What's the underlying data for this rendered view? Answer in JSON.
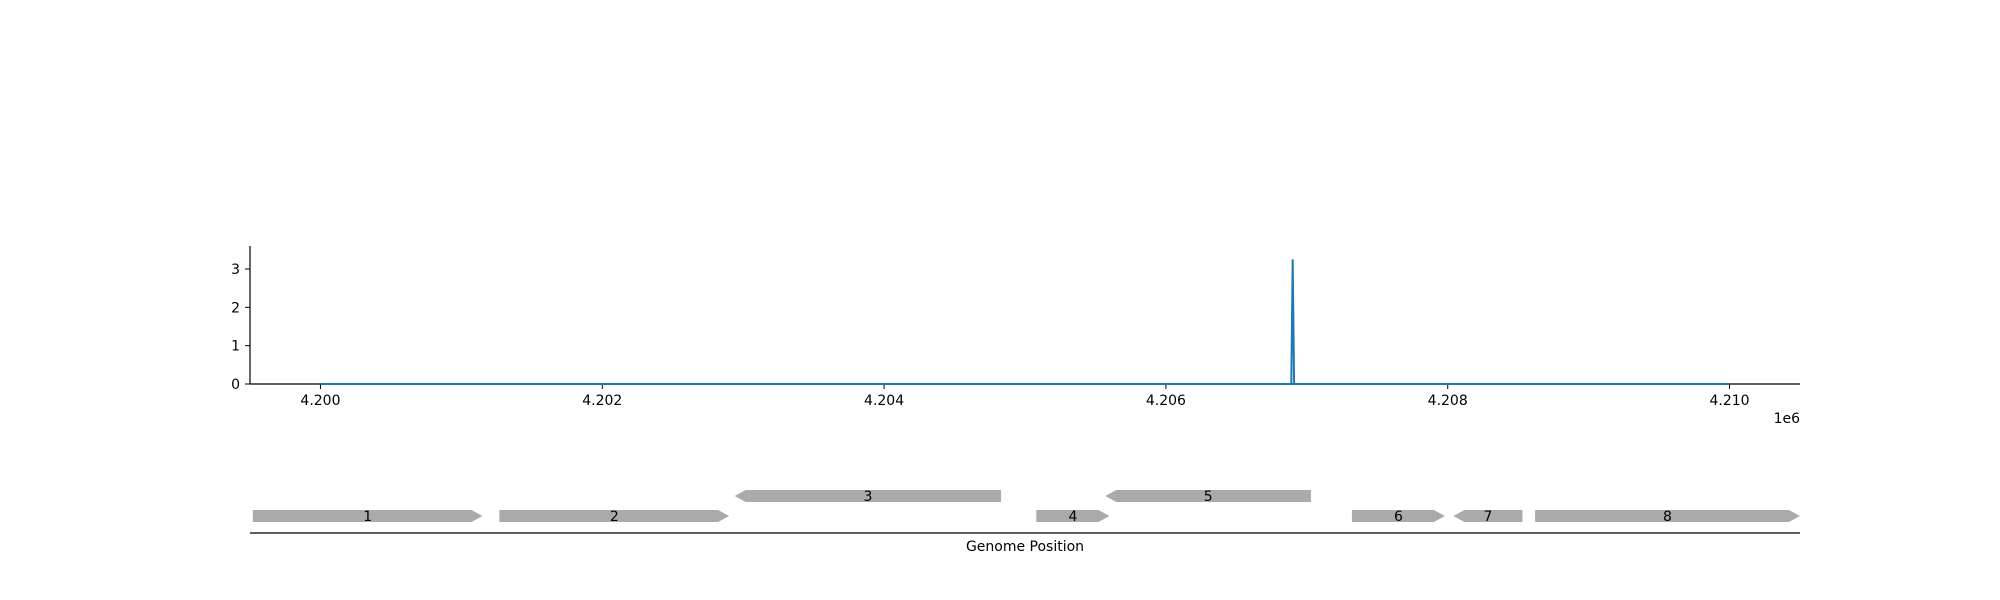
{
  "chart_data": [
    {
      "type": "line",
      "title": "",
      "xlabel": "",
      "ylabel": "",
      "x_offset_label": "1e6",
      "xlim": [
        4.1995,
        4.2105
      ],
      "ylim": [
        0,
        3.6
      ],
      "xticks": [
        4.2,
        4.202,
        4.204,
        4.206,
        4.208,
        4.21
      ],
      "xtick_labels": [
        "4.200",
        "4.202",
        "4.204",
        "4.206",
        "4.208",
        "4.210"
      ],
      "yticks": [
        0,
        1,
        2,
        3
      ],
      "ytick_labels": [
        "0",
        "1",
        "2",
        "3"
      ],
      "grid": false,
      "series": [
        {
          "color": "#1f77b4",
          "x": [
            4.2,
            4.20689,
            4.2069,
            4.20691,
            4.21
          ],
          "y": [
            0,
            0,
            3.25,
            0,
            0
          ]
        }
      ]
    },
    {
      "type": "gene_track",
      "xlabel": "Genome Position",
      "xlim": [
        4.1995,
        4.2105
      ],
      "color": "#aaaaaa",
      "genes": [
        {
          "label": "1",
          "start": 4.19952,
          "end": 4.20115,
          "strand": "+",
          "row": 0
        },
        {
          "label": "2",
          "start": 4.20127,
          "end": 4.2029,
          "strand": "+",
          "row": 0
        },
        {
          "label": "3",
          "start": 4.20294,
          "end": 4.20483,
          "strand": "-",
          "row": 1
        },
        {
          "label": "4",
          "start": 4.20508,
          "end": 4.2056,
          "strand": "+",
          "row": 0
        },
        {
          "label": "5",
          "start": 4.20557,
          "end": 4.20703,
          "strand": "-",
          "row": 1
        },
        {
          "label": "6",
          "start": 4.20732,
          "end": 4.20798,
          "strand": "+",
          "row": 0
        },
        {
          "label": "7",
          "start": 4.20804,
          "end": 4.20853,
          "strand": "-",
          "row": 0
        },
        {
          "label": "8",
          "start": 4.20862,
          "end": 4.2105,
          "strand": "+",
          "row": 0
        }
      ]
    }
  ]
}
